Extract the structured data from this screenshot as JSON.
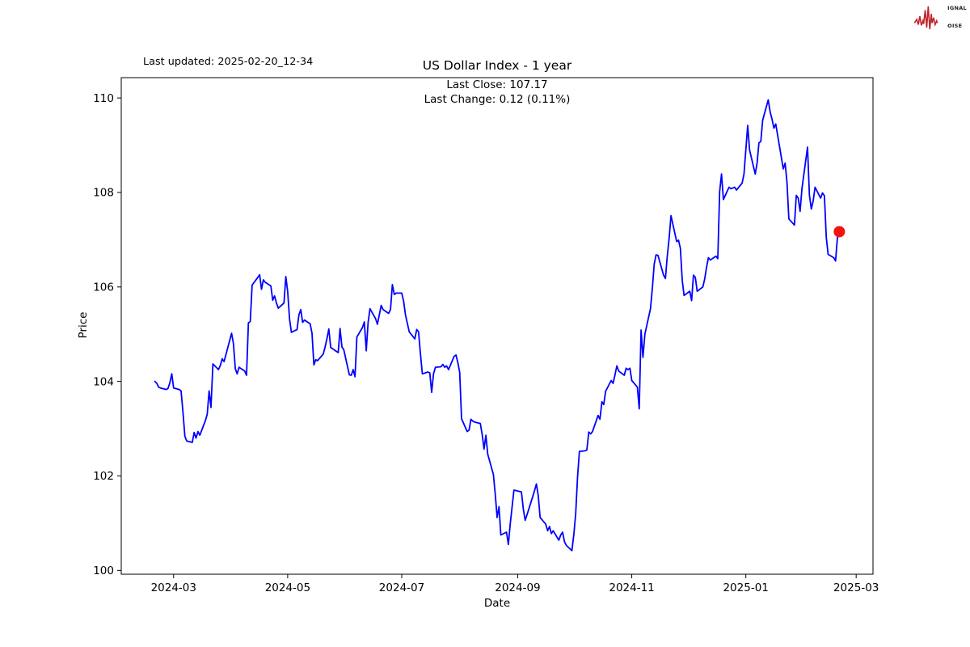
{
  "header": {
    "last_updated": "Last updated: 2025-02-20_12-34",
    "title": "US Dollar Index - 1 year",
    "subtitle_line1": "Last Close: 107.17",
    "subtitle_line2": "Last Change: 0.12 (0.11%)"
  },
  "logo": {
    "color": "#c0242b",
    "line1_box": "S",
    "line1_rest": "IGNAL",
    "line2_box": "2",
    "line2_rest": "",
    "line3_box": "N",
    "line3_rest": "OISE"
  },
  "chart_data": {
    "type": "line",
    "title": "US Dollar Index - 1 year",
    "xlabel": "Date",
    "ylabel": "Price",
    "grid": false,
    "legend": "none",
    "line_color": "#0000ff",
    "marker_color": "#f21410",
    "marker_size": 7,
    "xlim": [
      "2024-02-02",
      "2025-03-10"
    ],
    "ylim": [
      99.92,
      110.43
    ],
    "x_ticks": [
      {
        "date": "2024-03-01",
        "label": "2024-03"
      },
      {
        "date": "2024-05-01",
        "label": "2024-05"
      },
      {
        "date": "2024-07-01",
        "label": "2024-07"
      },
      {
        "date": "2024-09-01",
        "label": "2024-09"
      },
      {
        "date": "2024-11-01",
        "label": "2024-11"
      },
      {
        "date": "2025-01-01",
        "label": "2025-01"
      },
      {
        "date": "2025-03-01",
        "label": "2025-03"
      }
    ],
    "y_ticks": [
      {
        "value": 100,
        "label": "100"
      },
      {
        "value": 102,
        "label": "102"
      },
      {
        "value": 104,
        "label": "104"
      },
      {
        "value": 106,
        "label": "106"
      },
      {
        "value": 108,
        "label": "108"
      },
      {
        "value": 110,
        "label": "110"
      }
    ],
    "last_point": {
      "date": "2025-02-20",
      "value": 107.17
    },
    "points": [
      [
        "2024-02-20",
        104.0
      ],
      [
        "2024-02-21",
        103.96
      ],
      [
        "2024-02-22",
        103.88
      ],
      [
        "2024-02-23",
        103.86
      ],
      [
        "2024-02-26",
        103.83
      ],
      [
        "2024-02-27",
        103.85
      ],
      [
        "2024-02-28",
        103.97
      ],
      [
        "2024-02-29",
        104.16
      ],
      [
        "2024-03-01",
        103.86
      ],
      [
        "2024-03-04",
        103.83
      ],
      [
        "2024-03-05",
        103.8
      ],
      [
        "2024-03-06",
        103.36
      ],
      [
        "2024-03-07",
        102.84
      ],
      [
        "2024-03-08",
        102.74
      ],
      [
        "2024-03-11",
        102.71
      ],
      [
        "2024-03-12",
        102.92
      ],
      [
        "2024-03-13",
        102.8
      ],
      [
        "2024-03-14",
        102.94
      ],
      [
        "2024-03-15",
        102.86
      ],
      [
        "2024-03-18",
        103.17
      ],
      [
        "2024-03-19",
        103.31
      ],
      [
        "2024-03-20",
        103.8
      ],
      [
        "2024-03-21",
        103.45
      ],
      [
        "2024-03-22",
        104.37
      ],
      [
        "2024-03-25",
        104.25
      ],
      [
        "2024-03-26",
        104.34
      ],
      [
        "2024-03-27",
        104.48
      ],
      [
        "2024-03-28",
        104.42
      ],
      [
        "2024-04-01",
        105.02
      ],
      [
        "2024-04-02",
        104.8
      ],
      [
        "2024-04-03",
        104.27
      ],
      [
        "2024-04-04",
        104.16
      ],
      [
        "2024-04-05",
        104.3
      ],
      [
        "2024-04-08",
        104.22
      ],
      [
        "2024-04-09",
        104.13
      ],
      [
        "2024-04-10",
        105.24
      ],
      [
        "2024-04-11",
        105.27
      ],
      [
        "2024-04-12",
        106.04
      ],
      [
        "2024-04-15",
        106.2
      ],
      [
        "2024-04-16",
        106.26
      ],
      [
        "2024-04-17",
        105.95
      ],
      [
        "2024-04-18",
        106.15
      ],
      [
        "2024-04-19",
        106.1
      ],
      [
        "2024-04-22",
        106.02
      ],
      [
        "2024-04-23",
        105.72
      ],
      [
        "2024-04-24",
        105.81
      ],
      [
        "2024-04-25",
        105.66
      ],
      [
        "2024-04-26",
        105.55
      ],
      [
        "2024-04-29",
        105.66
      ],
      [
        "2024-04-30",
        106.22
      ],
      [
        "2024-05-01",
        105.9
      ],
      [
        "2024-05-02",
        105.32
      ],
      [
        "2024-05-03",
        105.04
      ],
      [
        "2024-05-06",
        105.1
      ],
      [
        "2024-05-07",
        105.41
      ],
      [
        "2024-05-08",
        105.52
      ],
      [
        "2024-05-09",
        105.25
      ],
      [
        "2024-05-10",
        105.3
      ],
      [
        "2024-05-13",
        105.22
      ],
      [
        "2024-05-14",
        105.02
      ],
      [
        "2024-05-15",
        104.35
      ],
      [
        "2024-05-16",
        104.46
      ],
      [
        "2024-05-17",
        104.44
      ],
      [
        "2024-05-20",
        104.58
      ],
      [
        "2024-05-21",
        104.73
      ],
      [
        "2024-05-22",
        104.91
      ],
      [
        "2024-05-23",
        105.11
      ],
      [
        "2024-05-24",
        104.72
      ],
      [
        "2024-05-28",
        104.61
      ],
      [
        "2024-05-29",
        105.12
      ],
      [
        "2024-05-30",
        104.73
      ],
      [
        "2024-05-31",
        104.67
      ],
      [
        "2024-06-03",
        104.14
      ],
      [
        "2024-06-04",
        104.13
      ],
      [
        "2024-06-05",
        104.25
      ],
      [
        "2024-06-06",
        104.1
      ],
      [
        "2024-06-07",
        104.94
      ],
      [
        "2024-06-10",
        105.14
      ],
      [
        "2024-06-11",
        105.26
      ],
      [
        "2024-06-12",
        104.65
      ],
      [
        "2024-06-13",
        105.25
      ],
      [
        "2024-06-14",
        105.54
      ],
      [
        "2024-06-17",
        105.33
      ],
      [
        "2024-06-18",
        105.21
      ],
      [
        "2024-06-20",
        105.61
      ],
      [
        "2024-06-21",
        105.52
      ],
      [
        "2024-06-24",
        105.44
      ],
      [
        "2024-06-25",
        105.52
      ],
      [
        "2024-06-26",
        106.05
      ],
      [
        "2024-06-27",
        105.84
      ],
      [
        "2024-06-28",
        105.87
      ],
      [
        "2024-07-01",
        105.87
      ],
      [
        "2024-07-02",
        105.7
      ],
      [
        "2024-07-03",
        105.41
      ],
      [
        "2024-07-05",
        105.05
      ],
      [
        "2024-07-08",
        104.9
      ],
      [
        "2024-07-09",
        105.1
      ],
      [
        "2024-07-10",
        105.05
      ],
      [
        "2024-07-11",
        104.59
      ],
      [
        "2024-07-12",
        104.16
      ],
      [
        "2024-07-15",
        104.2
      ],
      [
        "2024-07-16",
        104.18
      ],
      [
        "2024-07-17",
        103.77
      ],
      [
        "2024-07-18",
        104.16
      ],
      [
        "2024-07-19",
        104.3
      ],
      [
        "2024-07-22",
        104.31
      ],
      [
        "2024-07-23",
        104.36
      ],
      [
        "2024-07-24",
        104.3
      ],
      [
        "2024-07-25",
        104.33
      ],
      [
        "2024-07-26",
        104.25
      ],
      [
        "2024-07-29",
        104.53
      ],
      [
        "2024-07-30",
        104.56
      ],
      [
        "2024-07-31",
        104.4
      ],
      [
        "2024-08-01",
        104.19
      ],
      [
        "2024-08-02",
        103.21
      ],
      [
        "2024-08-05",
        102.94
      ],
      [
        "2024-08-06",
        102.97
      ],
      [
        "2024-08-07",
        103.2
      ],
      [
        "2024-08-08",
        103.16
      ],
      [
        "2024-08-09",
        103.14
      ],
      [
        "2024-08-12",
        103.11
      ],
      [
        "2024-08-13",
        102.88
      ],
      [
        "2024-08-14",
        102.57
      ],
      [
        "2024-08-15",
        102.86
      ],
      [
        "2024-08-16",
        102.46
      ],
      [
        "2024-08-19",
        102.03
      ],
      [
        "2024-08-20",
        101.61
      ],
      [
        "2024-08-21",
        101.12
      ],
      [
        "2024-08-22",
        101.35
      ],
      [
        "2024-08-23",
        100.75
      ],
      [
        "2024-08-26",
        100.81
      ],
      [
        "2024-08-27",
        100.55
      ],
      [
        "2024-08-28",
        100.98
      ],
      [
        "2024-08-29",
        101.34
      ],
      [
        "2024-08-30",
        101.7
      ],
      [
        "2024-09-03",
        101.66
      ],
      [
        "2024-09-04",
        101.3
      ],
      [
        "2024-09-05",
        101.06
      ],
      [
        "2024-09-06",
        101.18
      ],
      [
        "2024-09-09",
        101.56
      ],
      [
        "2024-09-10",
        101.69
      ],
      [
        "2024-09-11",
        101.83
      ],
      [
        "2024-09-12",
        101.58
      ],
      [
        "2024-09-13",
        101.12
      ],
      [
        "2024-09-16",
        100.98
      ],
      [
        "2024-09-17",
        100.84
      ],
      [
        "2024-09-18",
        100.93
      ],
      [
        "2024-09-19",
        100.78
      ],
      [
        "2024-09-20",
        100.84
      ],
      [
        "2024-09-23",
        100.64
      ],
      [
        "2024-09-24",
        100.75
      ],
      [
        "2024-09-25",
        100.81
      ],
      [
        "2024-09-26",
        100.61
      ],
      [
        "2024-09-27",
        100.53
      ],
      [
        "2024-09-30",
        100.42
      ],
      [
        "2024-10-01",
        100.76
      ],
      [
        "2024-10-02",
        101.2
      ],
      [
        "2024-10-03",
        101.98
      ],
      [
        "2024-10-04",
        102.52
      ],
      [
        "2024-10-07",
        102.53
      ],
      [
        "2024-10-08",
        102.55
      ],
      [
        "2024-10-09",
        102.93
      ],
      [
        "2024-10-10",
        102.89
      ],
      [
        "2024-10-11",
        102.94
      ],
      [
        "2024-10-14",
        103.28
      ],
      [
        "2024-10-15",
        103.2
      ],
      [
        "2024-10-16",
        103.57
      ],
      [
        "2024-10-17",
        103.51
      ],
      [
        "2024-10-18",
        103.79
      ],
      [
        "2024-10-21",
        104.02
      ],
      [
        "2024-10-22",
        103.96
      ],
      [
        "2024-10-23",
        104.13
      ],
      [
        "2024-10-24",
        104.33
      ],
      [
        "2024-10-25",
        104.22
      ],
      [
        "2024-10-28",
        104.13
      ],
      [
        "2024-10-29",
        104.28
      ],
      [
        "2024-10-30",
        104.25
      ],
      [
        "2024-10-31",
        104.28
      ],
      [
        "2024-11-01",
        104.02
      ],
      [
        "2024-11-04",
        103.88
      ],
      [
        "2024-11-05",
        103.42
      ],
      [
        "2024-11-06",
        105.09
      ],
      [
        "2024-11-07",
        104.51
      ],
      [
        "2024-11-08",
        105.0
      ],
      [
        "2024-11-11",
        105.54
      ],
      [
        "2024-11-12",
        105.96
      ],
      [
        "2024-11-13",
        106.48
      ],
      [
        "2024-11-14",
        106.68
      ],
      [
        "2024-11-15",
        106.67
      ],
      [
        "2024-11-18",
        106.25
      ],
      [
        "2024-11-19",
        106.18
      ],
      [
        "2024-11-20",
        106.65
      ],
      [
        "2024-11-21",
        107.03
      ],
      [
        "2024-11-22",
        107.51
      ],
      [
        "2024-11-25",
        106.96
      ],
      [
        "2024-11-26",
        106.99
      ],
      [
        "2024-11-27",
        106.82
      ],
      [
        "2024-11-28",
        106.14
      ],
      [
        "2024-11-29",
        105.82
      ],
      [
        "2024-12-02",
        105.91
      ],
      [
        "2024-12-03",
        105.71
      ],
      [
        "2024-12-04",
        106.25
      ],
      [
        "2024-12-05",
        106.2
      ],
      [
        "2024-12-06",
        105.91
      ],
      [
        "2024-12-09",
        106.0
      ],
      [
        "2024-12-10",
        106.17
      ],
      [
        "2024-12-11",
        106.42
      ],
      [
        "2024-12-12",
        106.62
      ],
      [
        "2024-12-13",
        106.57
      ],
      [
        "2024-12-16",
        106.65
      ],
      [
        "2024-12-17",
        106.6
      ],
      [
        "2024-12-18",
        108.02
      ],
      [
        "2024-12-19",
        108.39
      ],
      [
        "2024-12-20",
        107.85
      ],
      [
        "2024-12-23",
        108.11
      ],
      [
        "2024-12-24",
        108.08
      ],
      [
        "2024-12-26",
        108.11
      ],
      [
        "2024-12-27",
        108.05
      ],
      [
        "2024-12-30",
        108.2
      ],
      [
        "2024-12-31",
        108.39
      ],
      [
        "2025-01-02",
        109.42
      ],
      [
        "2025-01-03",
        108.9
      ],
      [
        "2025-01-06",
        108.39
      ],
      [
        "2025-01-07",
        108.62
      ],
      [
        "2025-01-08",
        109.05
      ],
      [
        "2025-01-09",
        109.08
      ],
      [
        "2025-01-10",
        109.53
      ],
      [
        "2025-01-13",
        109.96
      ],
      [
        "2025-01-14",
        109.7
      ],
      [
        "2025-01-15",
        109.55
      ],
      [
        "2025-01-16",
        109.36
      ],
      [
        "2025-01-17",
        109.45
      ],
      [
        "2025-01-21",
        108.5
      ],
      [
        "2025-01-22",
        108.62
      ],
      [
        "2025-01-23",
        108.21
      ],
      [
        "2025-01-24",
        107.44
      ],
      [
        "2025-01-27",
        107.31
      ],
      [
        "2025-01-28",
        107.94
      ],
      [
        "2025-01-29",
        107.88
      ],
      [
        "2025-01-30",
        107.6
      ],
      [
        "2025-01-31",
        108.08
      ],
      [
        "2025-02-03",
        108.96
      ],
      [
        "2025-02-04",
        107.95
      ],
      [
        "2025-02-05",
        107.65
      ],
      [
        "2025-02-06",
        107.82
      ],
      [
        "2025-02-07",
        108.11
      ],
      [
        "2025-02-10",
        107.88
      ],
      [
        "2025-02-11",
        107.99
      ],
      [
        "2025-02-12",
        107.93
      ],
      [
        "2025-02-13",
        107.05
      ],
      [
        "2025-02-14",
        106.69
      ],
      [
        "2025-02-17",
        106.62
      ],
      [
        "2025-02-18",
        106.55
      ],
      [
        "2025-02-19",
        107.05
      ],
      [
        "2025-02-20",
        107.17
      ]
    ]
  }
}
